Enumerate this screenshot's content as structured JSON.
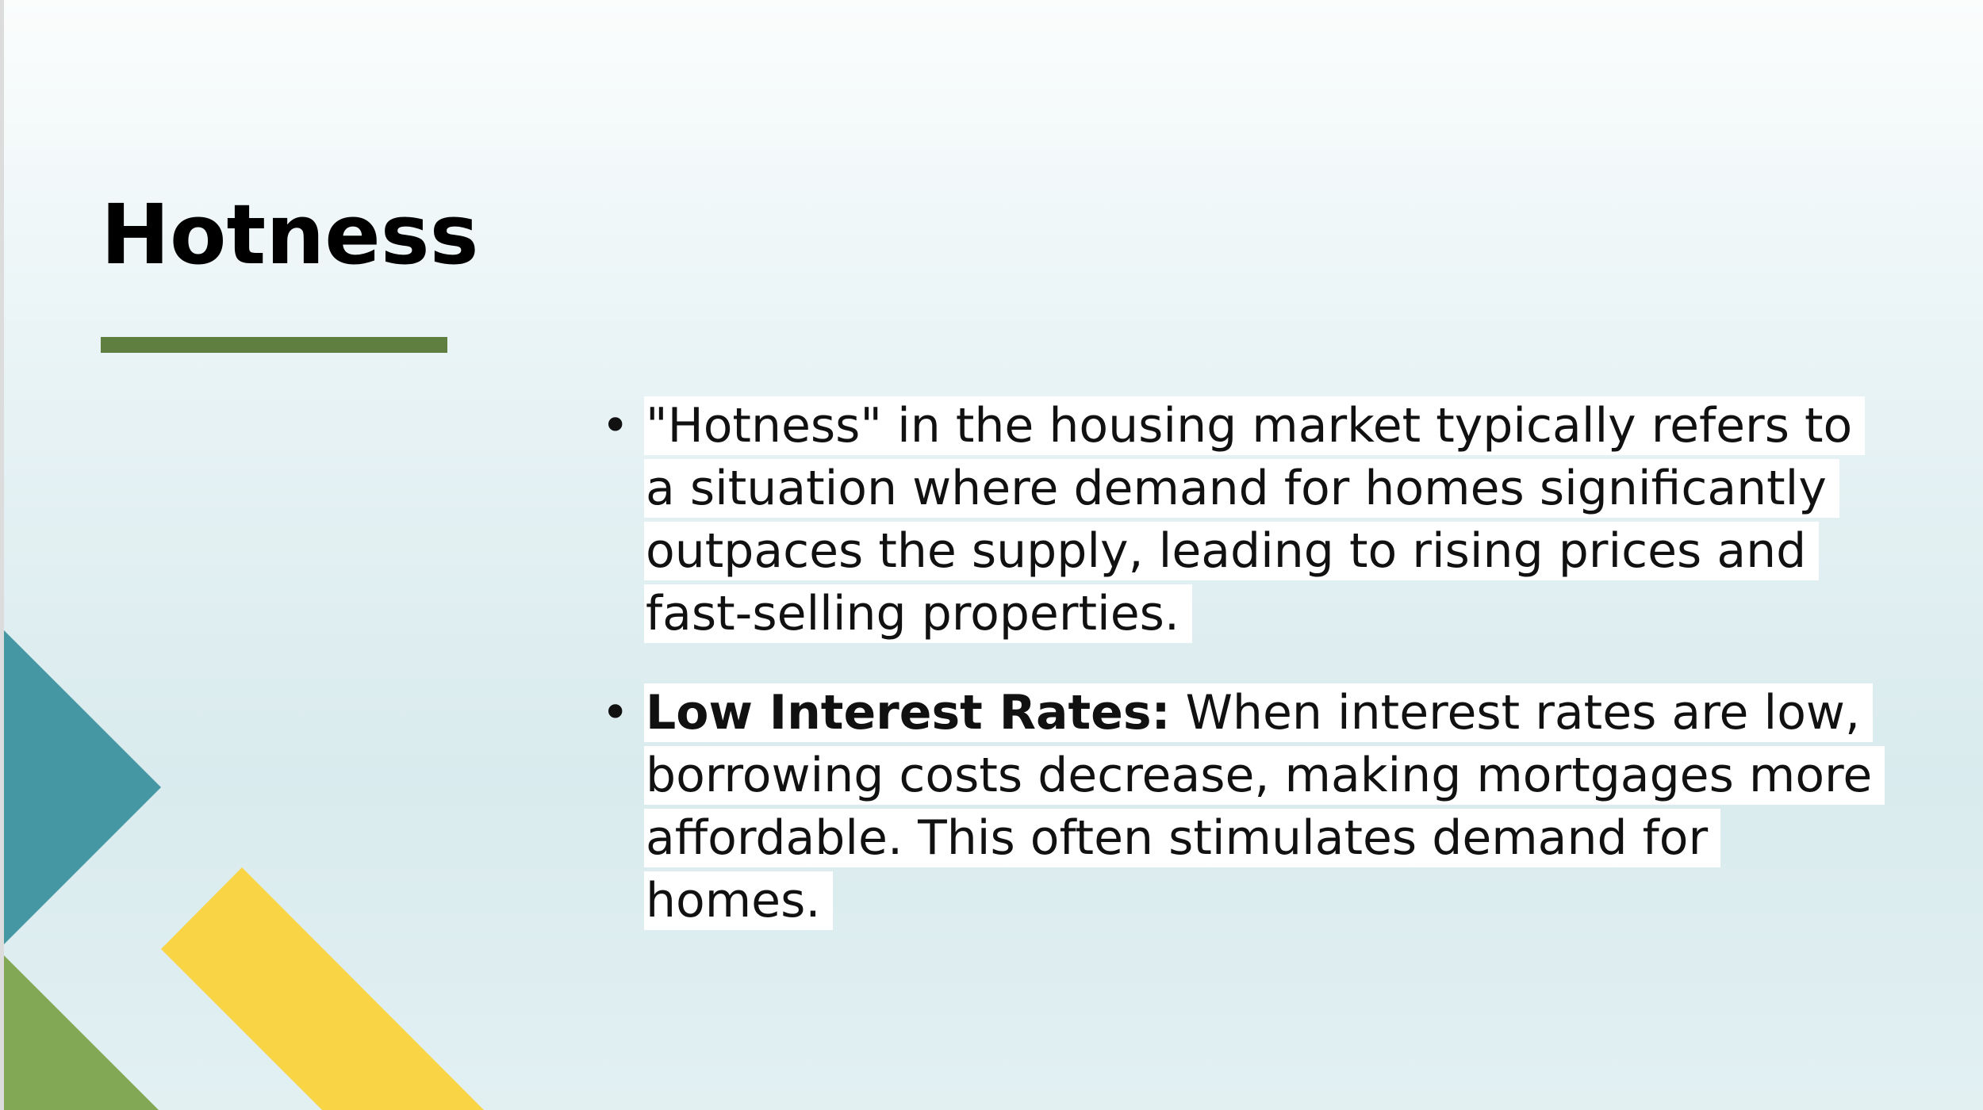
{
  "slide": {
    "title": "Hotness",
    "accent_color": "#5e7f3f",
    "bullets": [
      {
        "bold": "",
        "text": "\"Hotness\" in the housing market typically refers to a situation where demand for homes significantly outpaces the supply, leading to rising prices and fast-selling properties."
      },
      {
        "bold": "Low Interest Rates:",
        "text": " When interest rates are low, borrowing costs decrease, making mortgages more affordable. This often stimulates demand for homes."
      }
    ]
  },
  "decor_colors": {
    "teal": "#4597a3",
    "yellow": "#f9d546",
    "green": "#82a856"
  }
}
